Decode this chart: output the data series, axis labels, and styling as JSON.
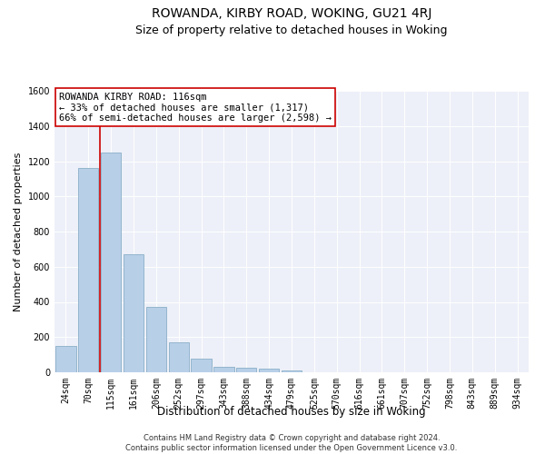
{
  "title": "ROWANDA, KIRBY ROAD, WOKING, GU21 4RJ",
  "subtitle": "Size of property relative to detached houses in Woking",
  "xlabel": "Distribution of detached houses by size in Woking",
  "ylabel": "Number of detached properties",
  "categories": [
    "24sqm",
    "70sqm",
    "115sqm",
    "161sqm",
    "206sqm",
    "252sqm",
    "297sqm",
    "343sqm",
    "388sqm",
    "434sqm",
    "479sqm",
    "525sqm",
    "570sqm",
    "616sqm",
    "661sqm",
    "707sqm",
    "752sqm",
    "798sqm",
    "843sqm",
    "889sqm",
    "934sqm"
  ],
  "bar_values": [
    150,
    1160,
    1250,
    670,
    370,
    170,
    80,
    30,
    25,
    20,
    10,
    0,
    0,
    0,
    0,
    0,
    0,
    0,
    0,
    0,
    0
  ],
  "bar_color": "#b8cfe8",
  "bar_edge_color": "#8aafc8",
  "vline_color": "#cc0000",
  "vline_position": 1.5,
  "annotation_text": "ROWANDA KIRBY ROAD: 116sqm\n← 33% of detached houses are smaller (1,317)\n66% of semi-detached houses are larger (2,598) →",
  "annotation_box_color": "white",
  "annotation_box_edge": "#cc0000",
  "ylim": [
    0,
    1600
  ],
  "yticks": [
    0,
    200,
    400,
    600,
    800,
    1000,
    1200,
    1400,
    1600
  ],
  "bg_color": "#edf0f8",
  "grid_color": "#ffffff",
  "footer_text": "Contains HM Land Registry data © Crown copyright and database right 2024.\nContains public sector information licensed under the Open Government Licence v3.0.",
  "title_fontsize": 10,
  "subtitle_fontsize": 9,
  "xlabel_fontsize": 8.5,
  "ylabel_fontsize": 8,
  "tick_fontsize": 7,
  "annotation_fontsize": 7.5,
  "footer_fontsize": 6
}
